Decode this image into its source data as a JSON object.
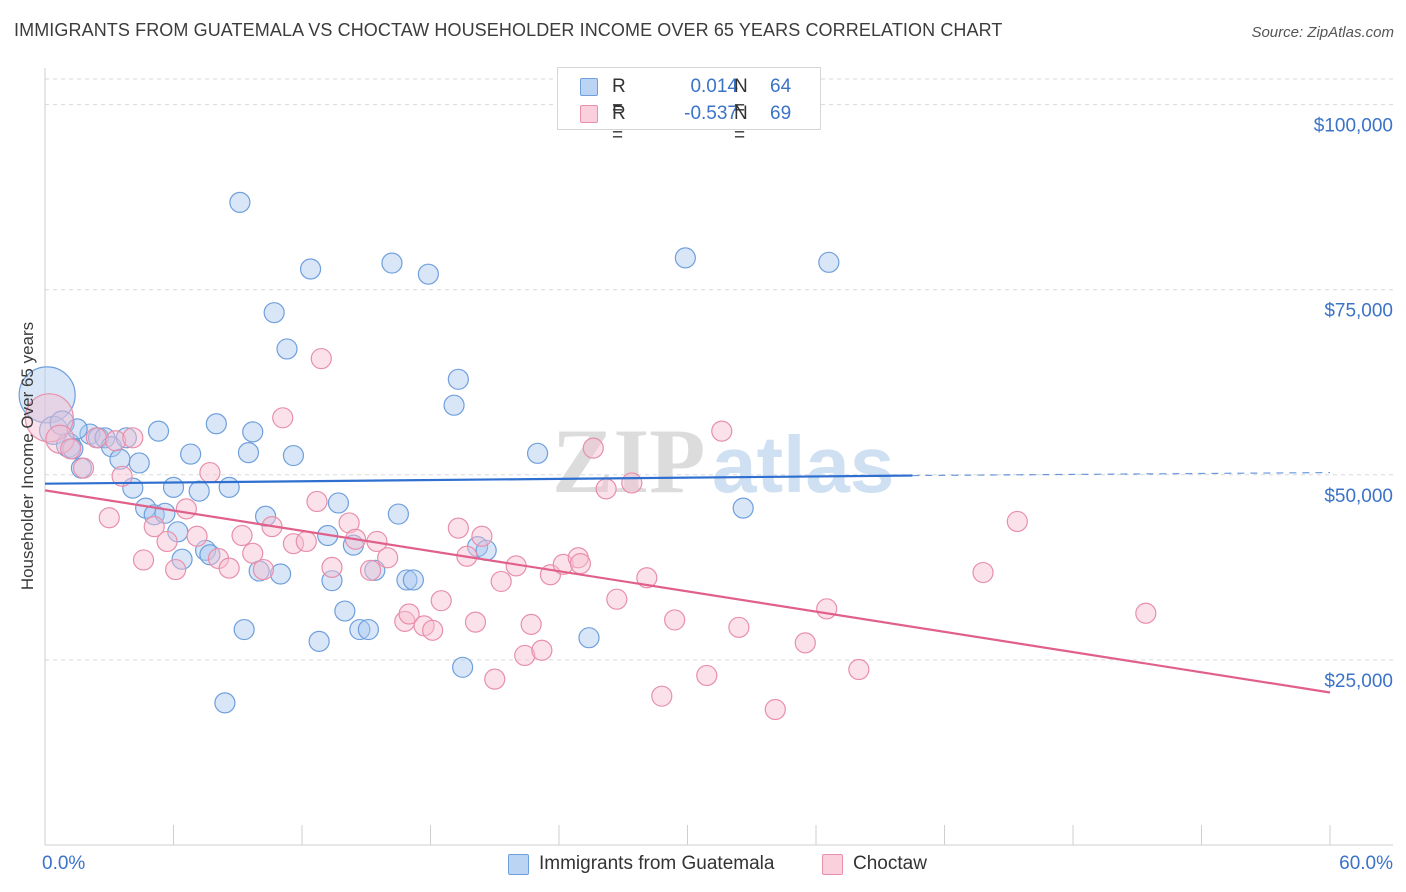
{
  "header": {
    "title": "IMMIGRANTS FROM GUATEMALA VS CHOCTAW HOUSEHOLDER INCOME OVER 65 YEARS CORRELATION CHART",
    "source": "Source: ZipAtlas.com"
  },
  "legend": {
    "rows": [
      {
        "r_label": "R =",
        "r_value": "0.014",
        "n_label": "N =",
        "n_value": "64"
      },
      {
        "r_label": "R =",
        "r_value": "-0.537",
        "n_label": "N =",
        "n_value": "69"
      }
    ]
  },
  "bottom_legend": {
    "items": [
      {
        "label": "Immigrants from Guatemala"
      },
      {
        "label": "Choctaw"
      }
    ]
  },
  "watermark": {
    "zip": "ZIP",
    "atlas": "atlas"
  },
  "colors": {
    "blue_fill": "#a9c8ef",
    "blue_stroke": "#6f9fdc",
    "blue_line": "#2e6fcf",
    "pink_fill": "#f6bfd0",
    "pink_stroke": "#e88fab",
    "pink_line": "#e0608a",
    "tick_label": "#3b73c8",
    "grid": "#d9d9d9"
  },
  "chart_data": {
    "type": "scatter",
    "title": "IMMIGRANTS FROM GUATEMALA VS CHOCTAW HOUSEHOLDER INCOME OVER 65 YEARS CORRELATION CHART",
    "xlabel": "",
    "ylabel": "Householder Income Over 65 years",
    "xlim": [
      0,
      60
    ],
    "ylim": [
      0,
      104000
    ],
    "x_tick_labels": [
      "0.0%",
      "60.0%"
    ],
    "y_ticks": [
      25000,
      50000,
      75000,
      100000
    ],
    "y_tick_labels": [
      "$25,000",
      "$50,000",
      "$75,000",
      "$100,000"
    ],
    "grid": true,
    "legend_position": "top-center",
    "series": [
      {
        "name": "Immigrants from Guatemala",
        "color": "blue",
        "trend": {
          "x": [
            0,
            40.5
          ],
          "y": [
            48800,
            49900
          ],
          "dashed_to_x": 60,
          "dashed_to_y": 50300
        },
        "points": [
          [
            0.1,
            60800,
            28
          ],
          [
            0.4,
            56000,
            14
          ],
          [
            0.8,
            57000,
            12
          ],
          [
            1.1,
            54000,
            12
          ],
          [
            1.3,
            53500,
            10
          ],
          [
            1.7,
            50900,
            10
          ],
          [
            2.1,
            55500,
            10
          ],
          [
            2.5,
            55000,
            10
          ],
          [
            2.8,
            55000,
            10
          ],
          [
            3.1,
            53800,
            10
          ],
          [
            3.5,
            52100,
            10
          ],
          [
            3.8,
            55000,
            10
          ],
          [
            4.1,
            48200,
            10
          ],
          [
            4.4,
            51600,
            10
          ],
          [
            4.7,
            45500,
            10
          ],
          [
            5.1,
            44600,
            10
          ],
          [
            5.3,
            55900,
            10
          ],
          [
            5.6,
            44800,
            10
          ],
          [
            6.0,
            48300,
            10
          ],
          [
            6.2,
            42300,
            10
          ],
          [
            6.4,
            38600,
            10
          ],
          [
            6.8,
            52800,
            10
          ],
          [
            7.2,
            47800,
            10
          ],
          [
            7.5,
            39800,
            10
          ],
          [
            7.7,
            39200,
            10
          ],
          [
            8.0,
            56900,
            10
          ],
          [
            8.4,
            19200,
            10
          ],
          [
            8.6,
            48300,
            10
          ],
          [
            9.1,
            86800,
            10
          ],
          [
            9.3,
            29100,
            10
          ],
          [
            9.5,
            53000,
            10
          ],
          [
            9.7,
            55800,
            10
          ],
          [
            10.0,
            37000,
            10
          ],
          [
            10.3,
            44400,
            10
          ],
          [
            10.7,
            71900,
            10
          ],
          [
            11.0,
            36600,
            10
          ],
          [
            11.3,
            67000,
            10
          ],
          [
            11.6,
            52600,
            10
          ],
          [
            12.4,
            77800,
            10
          ],
          [
            12.8,
            27500,
            10
          ],
          [
            13.2,
            41800,
            10
          ],
          [
            13.4,
            35700,
            10
          ],
          [
            13.7,
            46200,
            10
          ],
          [
            14.0,
            31600,
            10
          ],
          [
            14.4,
            40500,
            10
          ],
          [
            14.7,
            29100,
            10
          ],
          [
            15.1,
            29100,
            10
          ],
          [
            15.4,
            37100,
            10
          ],
          [
            16.2,
            78600,
            10
          ],
          [
            16.5,
            44700,
            10
          ],
          [
            16.9,
            35800,
            10
          ],
          [
            17.2,
            35800,
            10
          ],
          [
            17.9,
            77100,
            10
          ],
          [
            19.1,
            59400,
            10
          ],
          [
            19.3,
            62900,
            10
          ],
          [
            19.5,
            24000,
            10
          ],
          [
            20.2,
            40300,
            10
          ],
          [
            20.6,
            39800,
            10
          ],
          [
            23.0,
            52900,
            10
          ],
          [
            25.4,
            28000,
            10
          ],
          [
            29.9,
            79300,
            10
          ],
          [
            32.6,
            45500,
            10
          ],
          [
            36.6,
            78700,
            10
          ],
          [
            1.5,
            56200,
            10
          ]
        ]
      },
      {
        "name": "Choctaw",
        "color": "pink",
        "trend": {
          "x": [
            0,
            60
          ],
          "y": [
            47900,
            20600
          ]
        },
        "points": [
          [
            0.2,
            57700,
            24
          ],
          [
            0.7,
            54800,
            14
          ],
          [
            1.2,
            53500,
            10
          ],
          [
            1.8,
            50900,
            10
          ],
          [
            2.4,
            55000,
            10
          ],
          [
            3.0,
            44200,
            10
          ],
          [
            3.3,
            54600,
            10
          ],
          [
            3.6,
            49800,
            10
          ],
          [
            4.1,
            55000,
            10
          ],
          [
            4.6,
            38500,
            10
          ],
          [
            5.1,
            43000,
            10
          ],
          [
            5.7,
            41000,
            10
          ],
          [
            6.1,
            37200,
            10
          ],
          [
            6.6,
            45400,
            10
          ],
          [
            7.1,
            41700,
            10
          ],
          [
            7.7,
            50300,
            10
          ],
          [
            8.1,
            38700,
            10
          ],
          [
            8.6,
            37400,
            10
          ],
          [
            9.2,
            41800,
            10
          ],
          [
            9.7,
            39400,
            10
          ],
          [
            10.2,
            37200,
            10
          ],
          [
            10.6,
            43000,
            10
          ],
          [
            11.1,
            57700,
            10
          ],
          [
            11.6,
            40700,
            10
          ],
          [
            12.2,
            41000,
            10
          ],
          [
            12.7,
            46400,
            10
          ],
          [
            12.9,
            65700,
            10
          ],
          [
            13.4,
            37500,
            10
          ],
          [
            14.2,
            43500,
            10
          ],
          [
            14.5,
            41300,
            10
          ],
          [
            15.2,
            37100,
            10
          ],
          [
            15.5,
            41000,
            10
          ],
          [
            16.0,
            38800,
            10
          ],
          [
            16.8,
            30200,
            10
          ],
          [
            17.0,
            31200,
            10
          ],
          [
            17.7,
            29600,
            10
          ],
          [
            18.1,
            29000,
            10
          ],
          [
            18.5,
            33000,
            10
          ],
          [
            19.3,
            42800,
            10
          ],
          [
            19.7,
            39000,
            10
          ],
          [
            20.1,
            30100,
            10
          ],
          [
            20.4,
            41700,
            10
          ],
          [
            21.0,
            22400,
            10
          ],
          [
            21.3,
            35600,
            10
          ],
          [
            22.0,
            37700,
            10
          ],
          [
            22.4,
            25600,
            10
          ],
          [
            22.7,
            29800,
            10
          ],
          [
            23.2,
            26300,
            10
          ],
          [
            23.6,
            36500,
            10
          ],
          [
            24.2,
            37900,
            10
          ],
          [
            24.9,
            38800,
            10
          ],
          [
            25.6,
            53600,
            10
          ],
          [
            26.2,
            48100,
            10
          ],
          [
            26.7,
            33200,
            10
          ],
          [
            27.4,
            48900,
            10
          ],
          [
            28.1,
            36100,
            10
          ],
          [
            28.8,
            20100,
            10
          ],
          [
            29.4,
            30400,
            10
          ],
          [
            30.9,
            22900,
            10
          ],
          [
            31.6,
            55900,
            10
          ],
          [
            32.4,
            29400,
            10
          ],
          [
            34.1,
            18300,
            10
          ],
          [
            35.5,
            27300,
            10
          ],
          [
            36.5,
            31900,
            10
          ],
          [
            38.0,
            23700,
            10
          ],
          [
            43.8,
            36800,
            10
          ],
          [
            45.4,
            43700,
            10
          ],
          [
            51.4,
            31300,
            10
          ],
          [
            25.0,
            38000,
            10
          ]
        ]
      }
    ]
  }
}
